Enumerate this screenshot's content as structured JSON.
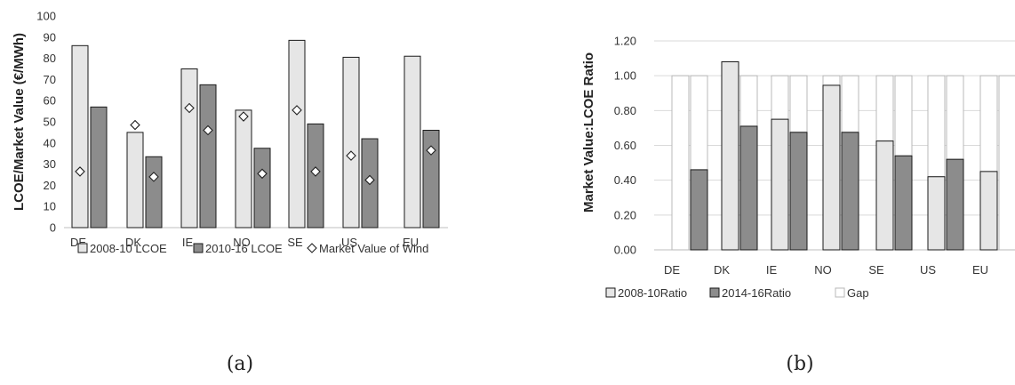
{
  "chart_data": [
    {
      "type": "bar",
      "panel_label": "(a)",
      "ylabel": "LCOE/Market Value (€/MWh)",
      "ylim": [
        0,
        100
      ],
      "yticks": [
        "0",
        "10",
        "20",
        "30",
        "40",
        "50",
        "60",
        "70",
        "80",
        "90",
        "100"
      ],
      "grid": false,
      "legend_position": "bottom",
      "categories": [
        "DE",
        "DK",
        "IE",
        "NO",
        "SE",
        "US",
        "EU"
      ],
      "series": [
        {
          "name": "2008-10 LCOE",
          "kind": "bar",
          "color": "#e6e6e6",
          "values": [
            86,
            45,
            75,
            55.5,
            88.5,
            80.5,
            81
          ]
        },
        {
          "name": "2010-16 LCOE",
          "kind": "bar",
          "color": "#8c8c8c",
          "values": [
            57,
            33.5,
            67.5,
            37.5,
            49,
            42,
            46
          ]
        },
        {
          "name": "Market Value of Wind",
          "kind": "marker",
          "marker": "diamond",
          "values": [
            26.5,
            48.5,
            56.5,
            52.5,
            55.5,
            34,
            null
          ]
        },
        {
          "name": "",
          "kind": "marker",
          "marker": "diamond",
          "values": [
            null,
            24,
            46,
            25.5,
            26.5,
            22.5,
            36.5
          ]
        }
      ]
    },
    {
      "type": "bar",
      "panel_label": "(b)",
      "ylabel": "Market Value:LCOE Ratio",
      "ylim": [
        0,
        1.2
      ],
      "yticks": [
        "0.00",
        "0.20",
        "0.40",
        "0.60",
        "0.80",
        "1.00",
        "1.20"
      ],
      "grid": true,
      "legend_position": "bottom",
      "categories": [
        "DE",
        "DK",
        "IE",
        "NO",
        "SE",
        "US",
        "EU"
      ],
      "series": [
        {
          "name": "2008-10Ratio",
          "color": "#e6e6e6",
          "values": [
            null,
            1.08,
            0.75,
            0.945,
            0.625,
            0.42,
            0.45
          ]
        },
        {
          "name": "2014-16Ratio",
          "color": "#8c8c8c",
          "values": [
            0.46,
            0.71,
            0.675,
            0.675,
            0.54,
            0.52,
            null
          ]
        },
        {
          "name": "Gap",
          "color": "#ffffff",
          "stack_to": 1.0
        }
      ]
    }
  ]
}
